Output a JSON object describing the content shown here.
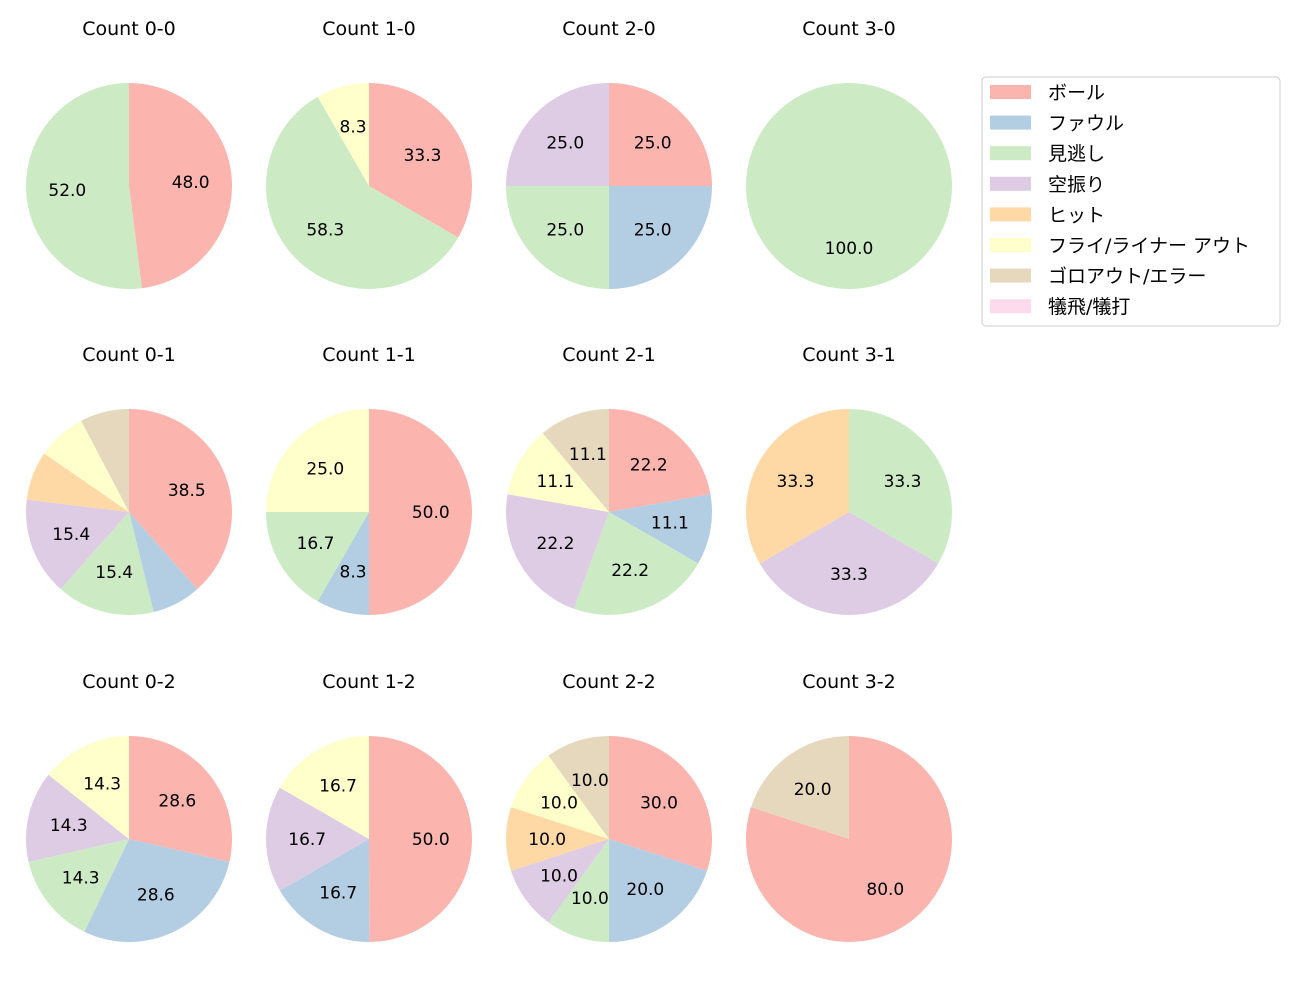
{
  "chart_data": {
    "type": "pie",
    "start_angle_deg": 90,
    "direction": "clockwise",
    "legend": {
      "placement": "top-right",
      "entries": [
        {
          "name": "ボール",
          "color": "#fbb4ae"
        },
        {
          "name": "ファウル",
          "color": "#b3cde3"
        },
        {
          "name": "見逃し",
          "color": "#ccebc5"
        },
        {
          "name": "空振り",
          "color": "#decbe4"
        },
        {
          "name": "ヒット",
          "color": "#fed9a6"
        },
        {
          "name": "フライ/ライナー アウト",
          "color": "#ffffcc"
        },
        {
          "name": "ゴロアウト/エラー",
          "color": "#e5d8bd"
        },
        {
          "name": "犠飛/犠打",
          "color": "#fddaec"
        }
      ]
    },
    "charts": [
      {
        "title": "Count 0-0",
        "values": [
          48.0,
          0,
          52.0,
          0,
          0,
          0,
          0,
          0
        ]
      },
      {
        "title": "Count 1-0",
        "values": [
          33.3,
          0,
          58.3,
          0,
          0,
          8.3,
          0,
          0
        ]
      },
      {
        "title": "Count 2-0",
        "values": [
          25.0,
          25.0,
          25.0,
          25.0,
          0,
          0,
          0,
          0
        ]
      },
      {
        "title": "Count 3-0",
        "values": [
          0,
          0,
          100.0,
          0,
          0,
          0,
          0,
          0
        ]
      },
      {
        "title": "Count 0-1",
        "values": [
          38.5,
          7.7,
          15.4,
          15.4,
          7.7,
          7.7,
          7.7,
          0
        ]
      },
      {
        "title": "Count 1-1",
        "values": [
          50.0,
          8.3,
          16.7,
          0,
          0,
          25.0,
          0,
          0
        ]
      },
      {
        "title": "Count 2-1",
        "values": [
          22.2,
          11.1,
          22.2,
          22.2,
          0,
          11.1,
          11.1,
          0
        ]
      },
      {
        "title": "Count 3-1",
        "values": [
          0,
          0,
          33.3,
          33.3,
          33.3,
          0,
          0,
          0
        ]
      },
      {
        "title": "Count 0-2",
        "values": [
          28.6,
          28.6,
          14.3,
          14.3,
          0,
          14.3,
          0,
          0
        ]
      },
      {
        "title": "Count 1-2",
        "values": [
          50.0,
          16.7,
          0,
          16.7,
          0,
          16.7,
          0,
          0
        ]
      },
      {
        "title": "Count 2-2",
        "values": [
          30.0,
          20.0,
          10.0,
          10.0,
          10.0,
          10.0,
          10.0,
          0
        ]
      },
      {
        "title": "Count 3-2",
        "values": [
          80.0,
          0,
          0,
          0,
          0,
          0,
          20.0,
          0
        ]
      }
    ]
  }
}
